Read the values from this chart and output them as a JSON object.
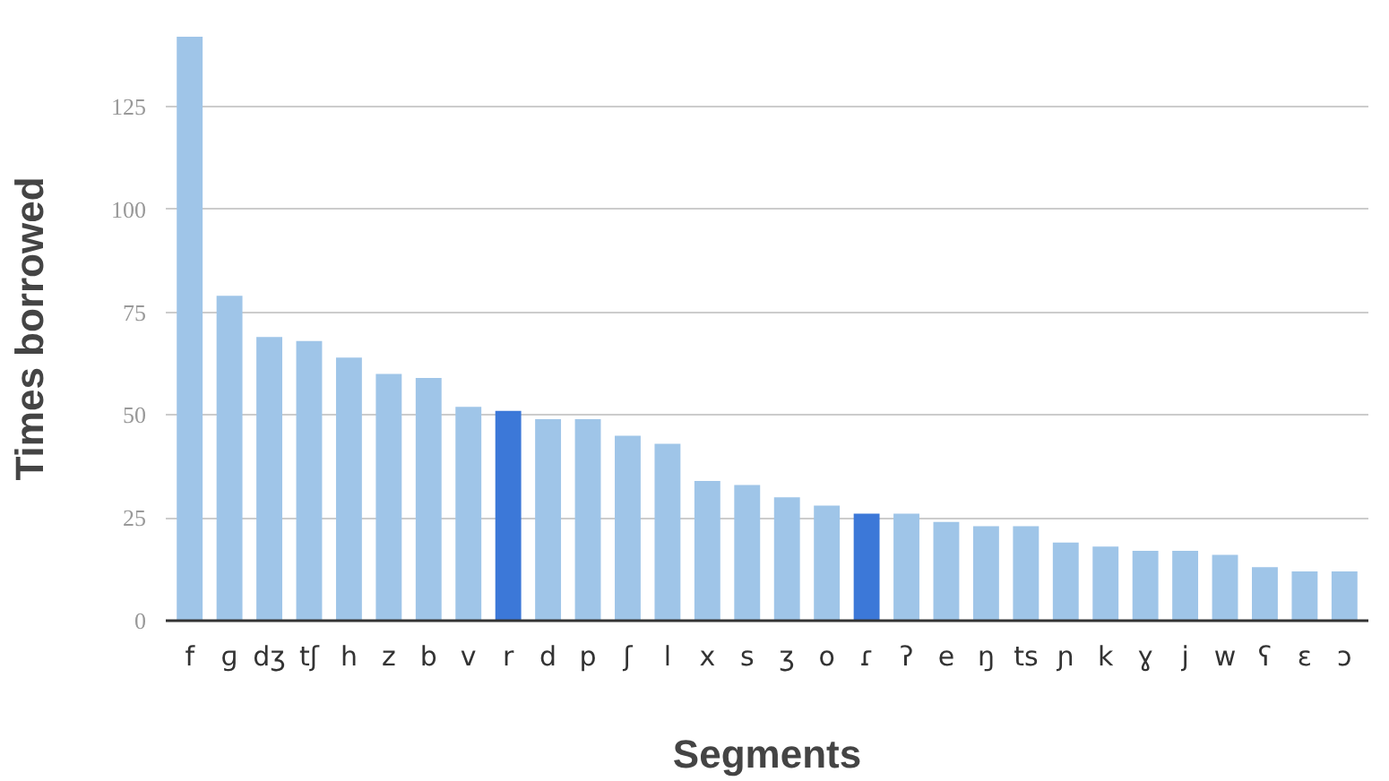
{
  "chart_data": {
    "type": "bar",
    "xlabel": "Segments",
    "ylabel": "Times borrowed",
    "categories": [
      "f",
      "ɡ",
      "dʒ",
      "tʃ",
      "h",
      "z",
      "b",
      "v",
      "r",
      "d",
      "p",
      "ʃ",
      "l",
      "x",
      "s",
      "ʒ",
      "o",
      "ɾ",
      "ʔ",
      "e",
      "ŋ",
      "ts",
      "ɲ",
      "k",
      "ɣ",
      "j",
      "w",
      "ʕ",
      "ɛ",
      "ɔ"
    ],
    "values": [
      142,
      79,
      69,
      68,
      64,
      60,
      59,
      52,
      51,
      49,
      49,
      45,
      43,
      34,
      33,
      30,
      28,
      26,
      26,
      24,
      23,
      23,
      19,
      18,
      17,
      17,
      16,
      13,
      12,
      12
    ],
    "colors": [
      "#9fc5e8",
      "#9fc5e8",
      "#9fc5e8",
      "#9fc5e8",
      "#9fc5e8",
      "#9fc5e8",
      "#9fc5e8",
      "#9fc5e8",
      "#3c78d8",
      "#9fc5e8",
      "#9fc5e8",
      "#9fc5e8",
      "#9fc5e8",
      "#9fc5e8",
      "#9fc5e8",
      "#9fc5e8",
      "#9fc5e8",
      "#3c78d8",
      "#9fc5e8",
      "#9fc5e8",
      "#9fc5e8",
      "#9fc5e8",
      "#9fc5e8",
      "#9fc5e8",
      "#9fc5e8",
      "#9fc5e8",
      "#9fc5e8",
      "#9fc5e8",
      "#9fc5e8",
      "#9fc5e8"
    ],
    "ylim": [
      0,
      142
    ],
    "yticks": [
      0,
      25,
      50,
      75,
      100,
      125
    ],
    "grid": "y"
  }
}
